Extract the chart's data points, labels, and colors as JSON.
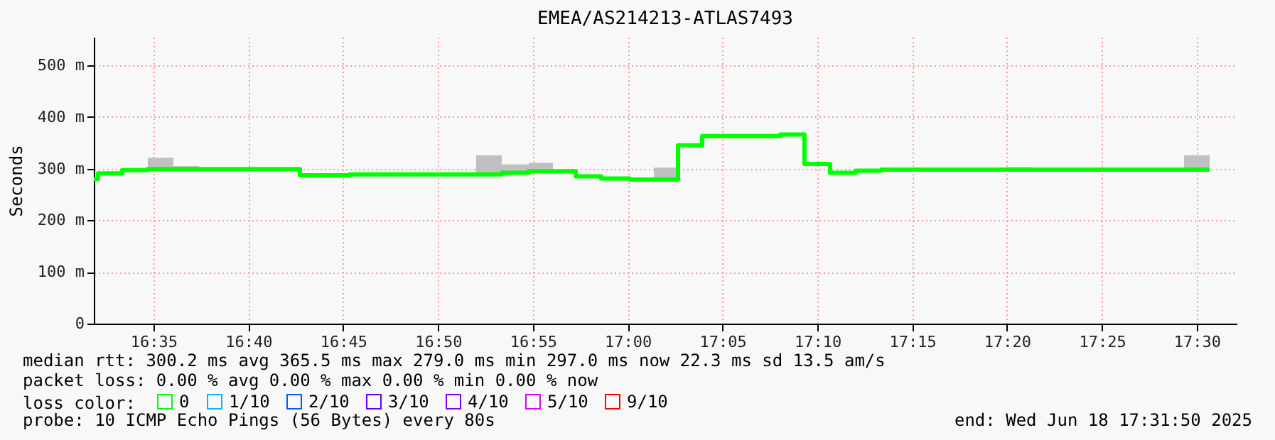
{
  "chart_data": {
    "type": "step",
    "title": "EMEA/AS214213-ATLAS7493",
    "ylabel": "Seconds",
    "x": [
      16.5309,
      16.5346,
      16.5559,
      16.5783,
      16.6008,
      16.6233,
      16.712,
      16.7557,
      16.8668,
      16.8893,
      16.913,
      16.9343,
      16.9543,
      16.9767,
      17.0017,
      17.023,
      17.0442,
      17.0654,
      17.1341,
      17.1553,
      17.1778,
      17.2003,
      17.2228,
      17.3327,
      17.3552,
      17.4888,
      17.5113
    ],
    "series": [
      {
        "name": "0",
        "color": "#00ff00",
        "values": [
          280,
          291,
          297,
          299,
          299,
          299,
          287,
          289,
          289,
          292,
          295,
          295,
          285,
          281,
          279,
          279,
          345,
          363,
          366,
          309,
          292,
          296,
          298,
          298,
          298,
          298,
          298
        ],
        "lower": [
          280,
          291,
          297,
          299,
          299,
          299,
          287,
          289,
          289,
          292,
          295,
          295,
          285,
          281,
          279,
          279,
          345,
          363,
          366,
          309,
          292,
          296,
          298,
          298,
          298,
          298,
          298
        ],
        "upper": [
          280,
          291,
          297,
          321,
          305,
          299,
          287,
          289,
          326,
          308,
          311,
          295,
          285,
          281,
          279,
          302,
          345,
          363,
          366,
          309,
          292,
          296,
          298,
          303,
          298,
          326,
          298
        ]
      },
      {
        "name": "1/10",
        "color": "#00b8ff",
        "values": [
          null,
          null,
          null,
          null,
          null,
          null,
          null,
          null,
          null,
          null,
          null,
          null,
          null,
          null,
          null,
          null,
          null,
          null,
          null,
          null,
          null,
          null,
          null,
          null,
          null,
          null,
          null
        ]
      },
      {
        "name": "2/10",
        "color": "#0059ff",
        "values": [
          null,
          null,
          null,
          null,
          null,
          null,
          null,
          null,
          null,
          null,
          null,
          null,
          null,
          null,
          null,
          null,
          null,
          null,
          null,
          null,
          null,
          null,
          null,
          null,
          null,
          null,
          null
        ]
      },
      {
        "name": "3/10",
        "color": "#5e00ff",
        "values": [
          null,
          null,
          null,
          null,
          null,
          null,
          null,
          null,
          null,
          null,
          null,
          null,
          null,
          null,
          null,
          null,
          null,
          null,
          null,
          null,
          null,
          null,
          null,
          null,
          null,
          null,
          null
        ]
      },
      {
        "name": "4/10",
        "color": "#7e00ff",
        "values": [
          null,
          null,
          null,
          null,
          null,
          null,
          null,
          null,
          null,
          null,
          null,
          null,
          null,
          null,
          null,
          null,
          null,
          null,
          null,
          null,
          null,
          null,
          null,
          null,
          null,
          null,
          null
        ]
      },
      {
        "name": "5/10",
        "color": "#dd00ff",
        "values": [
          null,
          null,
          null,
          null,
          null,
          null,
          null,
          null,
          null,
          null,
          null,
          null,
          null,
          null,
          null,
          null,
          null,
          null,
          null,
          null,
          null,
          null,
          null,
          null,
          null,
          null,
          null
        ]
      },
      {
        "name": "9/10",
        "color": "#ff0000",
        "values": [
          null,
          null,
          null,
          null,
          null,
          null,
          null,
          null,
          null,
          null,
          null,
          null,
          null,
          null,
          null,
          null,
          null,
          null,
          null,
          null,
          null,
          null,
          null,
          null,
          null,
          null,
          null
        ]
      }
    ],
    "legend_title": "loss color:",
    "legend": "bottom left",
    "xlim": [
      16.5309,
      17.535
    ],
    "xticks": [
      {
        "value": 16.5833,
        "label": "16:35"
      },
      {
        "value": 16.6667,
        "label": "16:40"
      },
      {
        "value": 16.75,
        "label": "16:45"
      },
      {
        "value": 16.8333,
        "label": "16:50"
      },
      {
        "value": 16.9167,
        "label": "16:55"
      },
      {
        "value": 17.0,
        "label": "17:00"
      },
      {
        "value": 17.0833,
        "label": "17:05"
      },
      {
        "value": 17.1667,
        "label": "17:10"
      },
      {
        "value": 17.25,
        "label": "17:15"
      },
      {
        "value": 17.3333,
        "label": "17:20"
      },
      {
        "value": 17.4167,
        "label": "17:25"
      },
      {
        "value": 17.5,
        "label": "17:30"
      }
    ],
    "ylim": [
      0,
      555
    ],
    "yticks": [
      0,
      {
        "value": 100,
        "label": "100 m"
      },
      {
        "value": 200,
        "label": "200 m"
      },
      {
        "value": 300,
        "label": "300 m"
      },
      {
        "value": 400,
        "label": "400 m"
      },
      {
        "value": 500,
        "label": "500 m"
      }
    ],
    "grid": true,
    "annotations": [
      "median rtt:  300.2 ms avg  365.5 ms max  279.0 ms min  297.0 ms now  22.3 ms sd  13.5   am/s",
      "packet loss: 0.00 % avg  0.00 % max  0.00 % min  0.00 % now",
      "probe:       10 ICMP Echo Pings (56 Bytes) every 80s",
      "end: Wed Jun 18 17:31:50 2025"
    ]
  }
}
